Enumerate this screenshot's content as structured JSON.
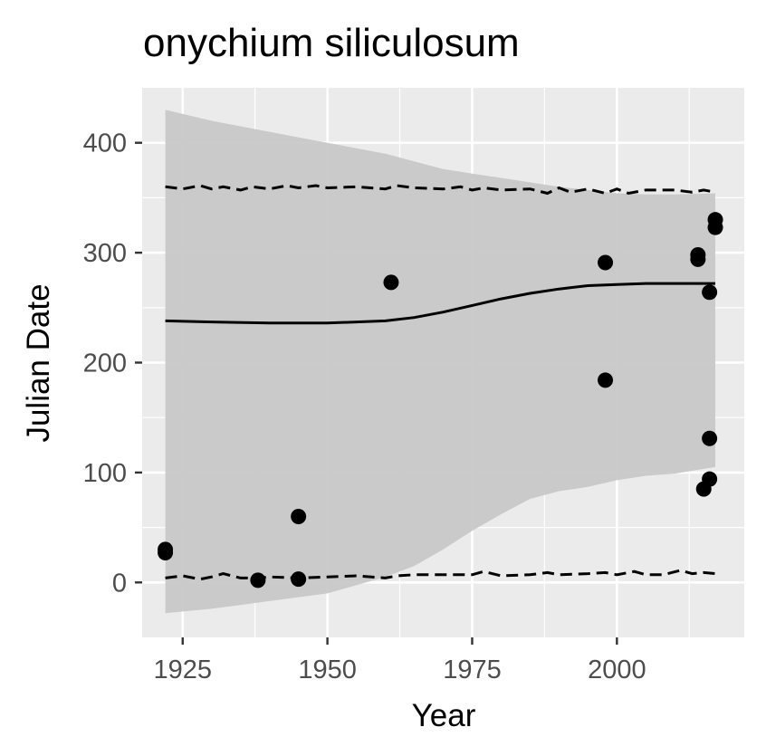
{
  "chart_data": {
    "type": "scatter",
    "title": "onychium siliculosum",
    "xlabel": "Year",
    "ylabel": "Julian Date",
    "xlim": [
      1918,
      2022
    ],
    "ylim": [
      -50,
      450
    ],
    "x_ticks": [
      1925,
      1950,
      1975,
      2000
    ],
    "y_ticks": [
      0,
      100,
      200,
      300,
      400
    ],
    "grid": true,
    "legend": "none",
    "colors": {
      "panel_background": "#ebebeb",
      "grid": "#ffffff",
      "ribbon": "#c8c8c8",
      "points": "#000000",
      "lines": "#000000"
    },
    "points": {
      "x": [
        1922,
        1922,
        1938,
        1945,
        1945,
        1961,
        1998,
        1998,
        2014,
        2014,
        2015,
        2016,
        2016,
        2016,
        2017,
        2017
      ],
      "y": [
        27,
        30,
        2,
        60,
        3,
        273,
        291,
        184,
        294,
        298,
        85,
        264,
        131,
        94,
        330,
        323
      ]
    },
    "fit_line": {
      "x": [
        1922,
        1930,
        1940,
        1950,
        1960,
        1965,
        1970,
        1975,
        1980,
        1985,
        1990,
        1995,
        2000,
        2005,
        2010,
        2017
      ],
      "y": [
        238,
        237,
        236,
        236,
        238,
        241,
        246,
        252,
        258,
        263,
        267,
        270,
        271,
        272,
        272,
        272
      ]
    },
    "upper_dashed": {
      "x": [
        1922,
        1925,
        1928,
        1930,
        1932,
        1935,
        1937,
        1940,
        1943,
        1945,
        1948,
        1950,
        1955,
        1960,
        1962,
        1965,
        1970,
        1973,
        1975,
        1977,
        1980,
        1985,
        1988,
        1990,
        1992,
        1995,
        1998,
        2000,
        2002,
        2005,
        2010,
        2013,
        2015,
        2017
      ],
      "y": [
        360,
        358,
        361,
        358,
        360,
        357,
        360,
        358,
        361,
        359,
        361,
        359,
        360,
        358,
        361,
        359,
        358,
        360,
        357,
        359,
        357,
        358,
        354,
        359,
        355,
        358,
        354,
        358,
        354,
        357,
        357,
        355,
        357,
        355
      ]
    },
    "lower_dashed": {
      "x": [
        1922,
        1925,
        1928,
        1930,
        1932,
        1935,
        1938,
        1940,
        1945,
        1950,
        1955,
        1960,
        1962,
        1965,
        1970,
        1975,
        1977,
        1980,
        1985,
        1988,
        1990,
        1995,
        1998,
        2000,
        2003,
        2005,
        2008,
        2011,
        2013,
        2015,
        2017
      ],
      "y": [
        4,
        6,
        3,
        5,
        8,
        4,
        4,
        5,
        4,
        5,
        6,
        4,
        6,
        7,
        7,
        7,
        10,
        6,
        7,
        9,
        7,
        8,
        9,
        7,
        10,
        7,
        7,
        11,
        8,
        9,
        8
      ]
    },
    "ribbon": {
      "x": [
        1922,
        1930,
        1940,
        1950,
        1960,
        1965,
        1970,
        1975,
        1980,
        1985,
        1990,
        1995,
        2000,
        2005,
        2010,
        2017
      ],
      "upper": [
        430,
        420,
        410,
        400,
        390,
        383,
        376,
        372,
        368,
        364,
        360,
        357,
        354,
        353,
        353,
        354
      ],
      "lower": [
        -28,
        -24,
        -17,
        -10,
        5,
        15,
        30,
        47,
        62,
        76,
        83,
        87,
        93,
        97,
        99,
        105
      ]
    }
  }
}
